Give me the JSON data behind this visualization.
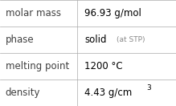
{
  "rows": [
    {
      "label": "molar mass",
      "value": "96.93 g/mol",
      "value_suffix": null,
      "superscript": null
    },
    {
      "label": "phase",
      "value": "solid",
      "value_suffix": " (at STP)",
      "superscript": null
    },
    {
      "label": "melting point",
      "value": "1200 °C",
      "value_suffix": null,
      "superscript": null
    },
    {
      "label": "density",
      "value": "4.43 g/cm",
      "value_suffix": null,
      "superscript": "3"
    }
  ],
  "col_split": 0.44,
  "bg_color": "#ffffff",
  "border_color": "#aaaaaa",
  "label_color": "#404040",
  "value_color": "#000000",
  "suffix_color": "#888888",
  "label_fontsize": 8.5,
  "value_fontsize": 8.5,
  "suffix_fontsize": 6.5
}
